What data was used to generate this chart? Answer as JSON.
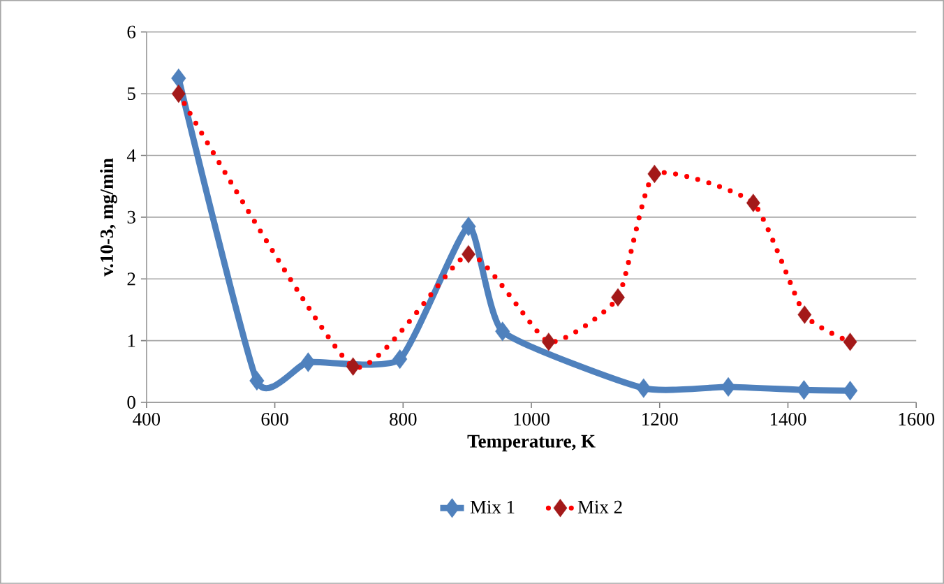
{
  "chart_data": {
    "type": "line",
    "xlabel": "Temperature, K",
    "ylabel": "v.10-3, mg/min",
    "xlim": [
      400,
      1600
    ],
    "xticks": [
      400,
      600,
      800,
      1000,
      1200,
      1400,
      1600
    ],
    "ylim": [
      0,
      6
    ],
    "yticks": [
      0,
      1,
      2,
      3,
      4,
      5,
      6
    ],
    "grid": "y",
    "legend": "bottom",
    "marker": "diamond",
    "series": [
      {
        "name": "Mix 1",
        "color": "#4f81bd",
        "line_style": "solid",
        "x": [
          450,
          572,
          652,
          795,
          902,
          955,
          1175,
          1307,
          1425,
          1497
        ],
        "values": [
          5.25,
          0.35,
          0.65,
          0.7,
          2.85,
          1.15,
          0.23,
          0.25,
          0.2,
          0.19
        ]
      },
      {
        "name": "Mix 2",
        "color": "#ff0000",
        "line_style": "dotted",
        "x": [
          450,
          722,
          902,
          1027,
          1135,
          1192,
          1346,
          1426,
          1497
        ],
        "values": [
          5.0,
          0.58,
          2.4,
          0.98,
          1.7,
          3.7,
          3.23,
          1.42,
          0.98
        ]
      }
    ]
  }
}
